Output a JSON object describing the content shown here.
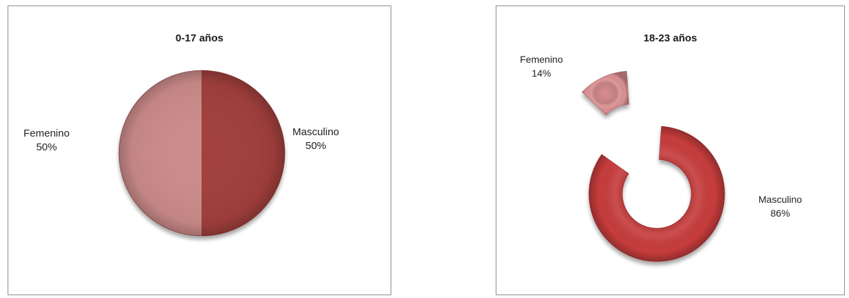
{
  "chart_data": [
    {
      "type": "pie",
      "title": "0-17 años",
      "slices": [
        {
          "label": "Masculino",
          "value": 50,
          "percent_label": "50%",
          "color": "#a23f3e"
        },
        {
          "label": "Femenino",
          "value": 50,
          "percent_label": "50%",
          "color": "#cc8c8b"
        }
      ]
    },
    {
      "type": "pie",
      "title": "18-23 años",
      "style": "exploded-doughnut",
      "slices": [
        {
          "label": "Masculino",
          "value": 86,
          "percent_label": "86%",
          "color": "#c63c3c"
        },
        {
          "label": "Femenino",
          "value": 14,
          "percent_label": "14%",
          "color": "#d98f91"
        }
      ]
    }
  ]
}
